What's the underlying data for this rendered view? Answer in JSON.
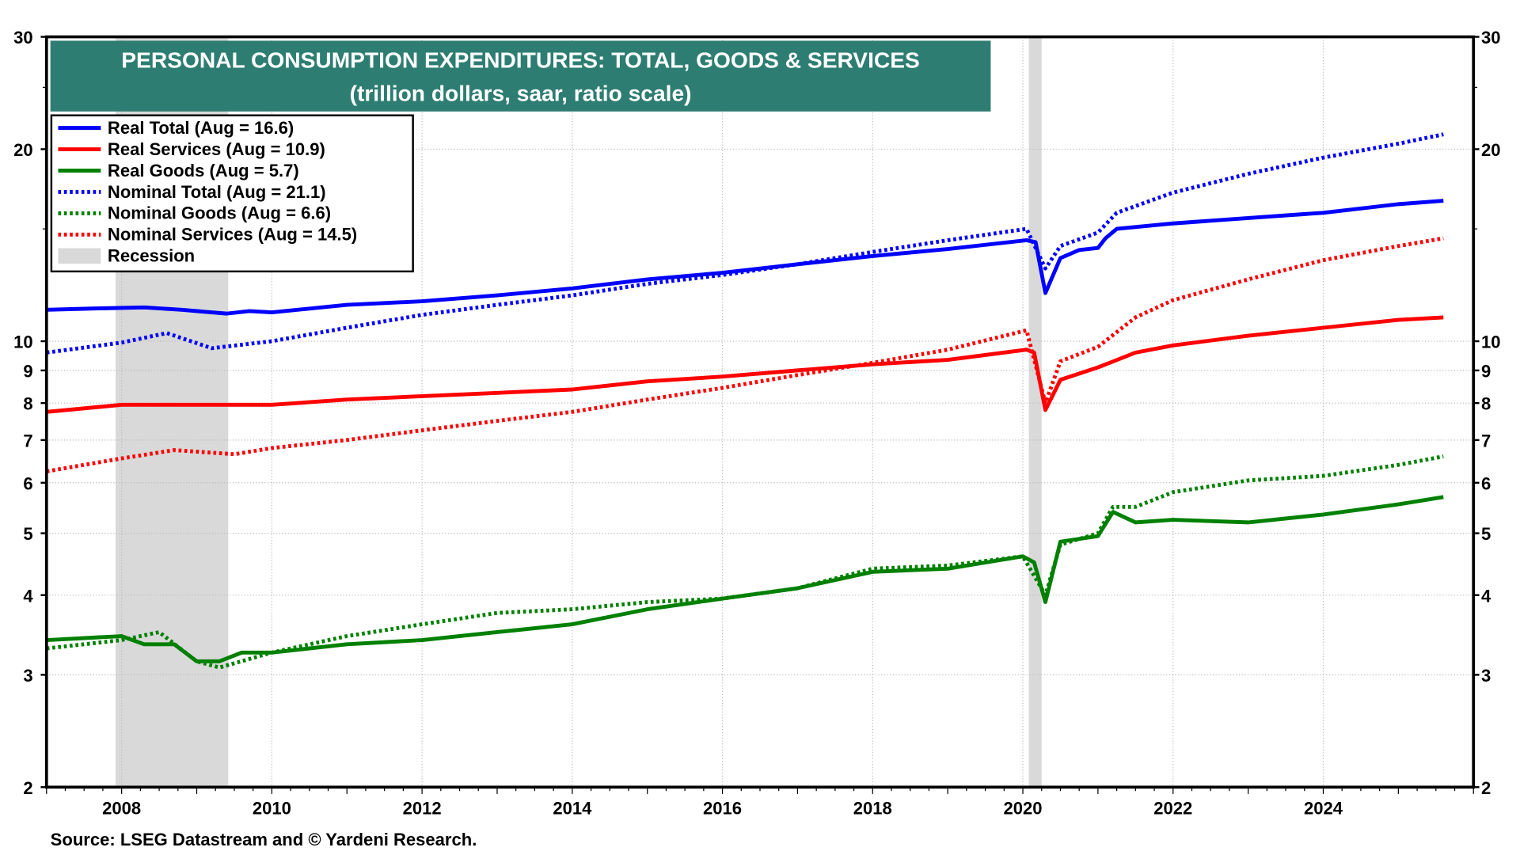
{
  "chart_data": {
    "type": "line",
    "title": "PERSONAL CONSUMPTION EXPENDITURES: TOTAL, GOODS & SERVICES",
    "subtitle": "(trillion dollars, saar, ratio scale)",
    "source": "Source: LSEG Datastream and © Yardeni Research.",
    "y_scale": "log",
    "ylim": [
      2,
      30
    ],
    "xlim": [
      2007.0,
      2026.0
    ],
    "y_ticks": [
      2,
      3,
      4,
      5,
      6,
      7,
      8,
      9,
      10,
      20,
      30
    ],
    "x_ticks": [
      2008,
      2010,
      2012,
      2014,
      2016,
      2018,
      2020,
      2022,
      2024
    ],
    "grid": true,
    "legend_position": "top-left",
    "recessions": [
      [
        2007.92,
        2009.42
      ],
      [
        2020.08,
        2020.25
      ]
    ],
    "recession_label": "Recession",
    "recession_color": "#d9d9d9",
    "title_bg": "#2e7d72",
    "series": [
      {
        "name": "Real Total  (Aug = 16.6)",
        "color": "#0000ff",
        "style": "solid",
        "x": [
          2007.0,
          2007.6,
          2008.3,
          2008.8,
          2009.4,
          2009.7,
          2010,
          2011,
          2012,
          2013,
          2014,
          2015,
          2016,
          2017,
          2018,
          2019,
          2020.05,
          2020.17,
          2020.3,
          2020.5,
          2020.75,
          2021.0,
          2021.1,
          2021.25,
          2022,
          2023,
          2024,
          2025,
          2025.6
        ],
        "y": [
          11.2,
          11.25,
          11.3,
          11.2,
          11.05,
          11.15,
          11.1,
          11.4,
          11.55,
          11.8,
          12.1,
          12.5,
          12.8,
          13.2,
          13.6,
          13.95,
          14.4,
          14.3,
          11.9,
          13.5,
          13.9,
          14.0,
          14.5,
          15.0,
          15.3,
          15.6,
          15.9,
          16.4,
          16.6
        ]
      },
      {
        "name": "Real Services  (Aug = 10.9)",
        "color": "#ff0000",
        "style": "solid",
        "x": [
          2007,
          2008,
          2009,
          2010,
          2011,
          2012,
          2013,
          2014,
          2015,
          2016,
          2017,
          2018,
          2019,
          2020.05,
          2020.15,
          2020.3,
          2020.5,
          2021,
          2021.5,
          2022,
          2023,
          2024,
          2025,
          2025.6
        ],
        "y": [
          7.75,
          7.95,
          7.95,
          7.95,
          8.1,
          8.2,
          8.3,
          8.4,
          8.65,
          8.8,
          9.0,
          9.2,
          9.35,
          9.7,
          9.6,
          7.8,
          8.7,
          9.1,
          9.6,
          9.85,
          10.2,
          10.5,
          10.8,
          10.9
        ]
      },
      {
        "name": "Real Goods  (Aug = 5.7)",
        "color": "#008000",
        "style": "solid",
        "x": [
          2007,
          2008,
          2008.3,
          2008.7,
          2009,
          2009.3,
          2009.6,
          2010,
          2011,
          2012,
          2013,
          2014,
          2015,
          2016,
          2017,
          2018,
          2019,
          2020.0,
          2020.15,
          2020.3,
          2020.5,
          2021,
          2021.2,
          2021.5,
          2022,
          2023,
          2024,
          2025,
          2025.6
        ],
        "y": [
          3.4,
          3.45,
          3.35,
          3.35,
          3.15,
          3.15,
          3.25,
          3.25,
          3.35,
          3.4,
          3.5,
          3.6,
          3.8,
          3.95,
          4.1,
          4.35,
          4.4,
          4.6,
          4.5,
          3.9,
          4.85,
          4.95,
          5.4,
          5.2,
          5.25,
          5.2,
          5.35,
          5.55,
          5.7
        ]
      },
      {
        "name": "Nominal Total  (Aug = 21.1)",
        "color": "#0000ff",
        "style": "dotted",
        "x": [
          2007,
          2008,
          2008.6,
          2009.2,
          2010,
          2011,
          2012,
          2013,
          2014,
          2015,
          2016,
          2017,
          2018,
          2019,
          2020.05,
          2020.3,
          2020.5,
          2021,
          2021.25,
          2022,
          2023,
          2024,
          2025,
          2025.6
        ],
        "y": [
          9.6,
          9.95,
          10.3,
          9.75,
          10.0,
          10.5,
          11.0,
          11.4,
          11.8,
          12.3,
          12.7,
          13.2,
          13.8,
          14.4,
          15.0,
          13.0,
          14.1,
          14.8,
          15.9,
          17.1,
          18.3,
          19.4,
          20.4,
          21.1
        ]
      },
      {
        "name": "Nominal Goods (Aug = 6.6)",
        "color": "#008000",
        "style": "dotted",
        "x": [
          2007,
          2008,
          2008.5,
          2009,
          2009.3,
          2010,
          2011,
          2012,
          2013,
          2014,
          2015,
          2016,
          2017,
          2018,
          2019,
          2020,
          2020.3,
          2020.5,
          2021,
          2021.2,
          2021.5,
          2022,
          2023,
          2024,
          2025,
          2025.6
        ],
        "y": [
          3.3,
          3.4,
          3.5,
          3.15,
          3.08,
          3.25,
          3.45,
          3.6,
          3.75,
          3.8,
          3.9,
          3.95,
          4.1,
          4.4,
          4.45,
          4.6,
          4.0,
          4.8,
          5.0,
          5.5,
          5.5,
          5.8,
          6.05,
          6.15,
          6.4,
          6.6
        ]
      },
      {
        "name": "Nominal Services (Aug = 14.5)",
        "color": "#ff0000",
        "style": "dotted",
        "x": [
          2007,
          2008,
          2008.7,
          2009.5,
          2010,
          2011,
          2012,
          2013,
          2014,
          2015,
          2016,
          2017,
          2018,
          2019,
          2020.05,
          2020.3,
          2020.5,
          2021,
          2021.5,
          2022,
          2023,
          2024,
          2025,
          2025.6
        ],
        "y": [
          6.25,
          6.55,
          6.75,
          6.65,
          6.8,
          7.0,
          7.25,
          7.5,
          7.75,
          8.1,
          8.45,
          8.85,
          9.25,
          9.7,
          10.4,
          8.0,
          9.3,
          9.8,
          10.9,
          11.6,
          12.5,
          13.4,
          14.1,
          14.5
        ]
      }
    ]
  }
}
